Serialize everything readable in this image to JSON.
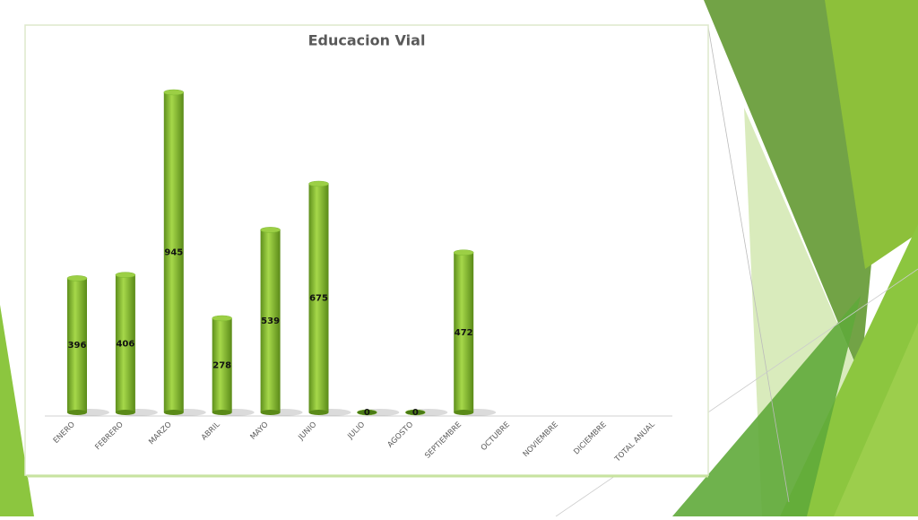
{
  "chart_data": {
    "type": "bar",
    "title": "Educacion Vial",
    "categories": [
      "ENERO",
      "FEBRERO",
      "MARZO",
      "ABRIL",
      "MAYO",
      "JUNIO",
      "JULIO",
      "AGOSTO",
      "SEPTIEMBRE",
      "OCTUBRE",
      "NOVIEMBRE",
      "DICIEMBRE",
      "TOTAL ANUAL"
    ],
    "values": [
      396,
      406,
      945,
      278,
      539,
      675,
      0,
      0,
      472,
      null,
      null,
      null,
      null
    ],
    "color": "#7cb82f"
  }
}
